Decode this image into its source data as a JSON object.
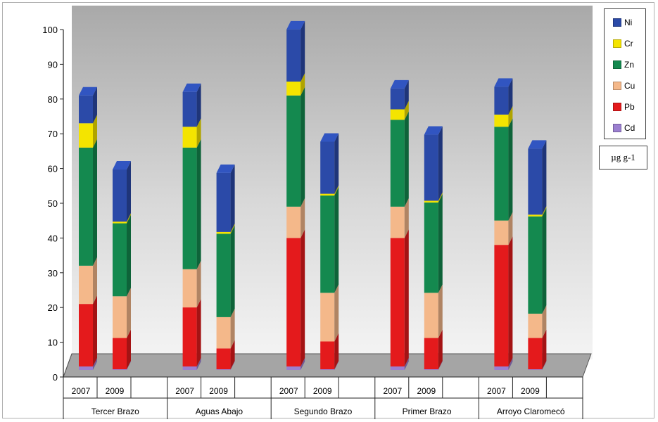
{
  "chart_data": {
    "type": "bar",
    "stacked": true,
    "three_d": true,
    "ylim": [
      0,
      100
    ],
    "yticks": [
      0,
      10,
      20,
      30,
      40,
      50,
      60,
      70,
      80,
      90,
      100
    ],
    "groups": [
      "Tercer Brazo",
      "Aguas Abajo",
      "Segundo Brazo",
      "Primer Brazo",
      "Arroyo Claromecó"
    ],
    "years": [
      "2007",
      "2009"
    ],
    "unit_label": "µg g-1",
    "legend_position": "top-right",
    "legend_order": [
      "Ni",
      "Cr",
      "Zn",
      "Cu",
      "Pb",
      "Cd"
    ],
    "series": [
      {
        "name": "Cd",
        "color": "#9b7fd0",
        "values": [
          1.0,
          0.2,
          1.0,
          0.2,
          1.0,
          0.2,
          1.0,
          0.2,
          1.0,
          0.2
        ]
      },
      {
        "name": "Pb",
        "color": "#e41a1c",
        "values": [
          18,
          9,
          17,
          6,
          37,
          8,
          37,
          9,
          35,
          9
        ]
      },
      {
        "name": "Cu",
        "color": "#f4b88a",
        "values": [
          11,
          12,
          11,
          9,
          9,
          14,
          9,
          13,
          7,
          7
        ]
      },
      {
        "name": "Zn",
        "color": "#14894f",
        "values": [
          34,
          21,
          35,
          24,
          32,
          28,
          25,
          26,
          27,
          28
        ]
      },
      {
        "name": "Cr",
        "color": "#f4e400",
        "values": [
          7,
          0.5,
          6,
          0.5,
          4,
          0.5,
          3,
          0.5,
          3.5,
          0.5
        ]
      },
      {
        "name": "Ni",
        "color": "#2b4aa8",
        "values": [
          8,
          15,
          10,
          17,
          15,
          15,
          6,
          19,
          8,
          19
        ]
      }
    ]
  }
}
